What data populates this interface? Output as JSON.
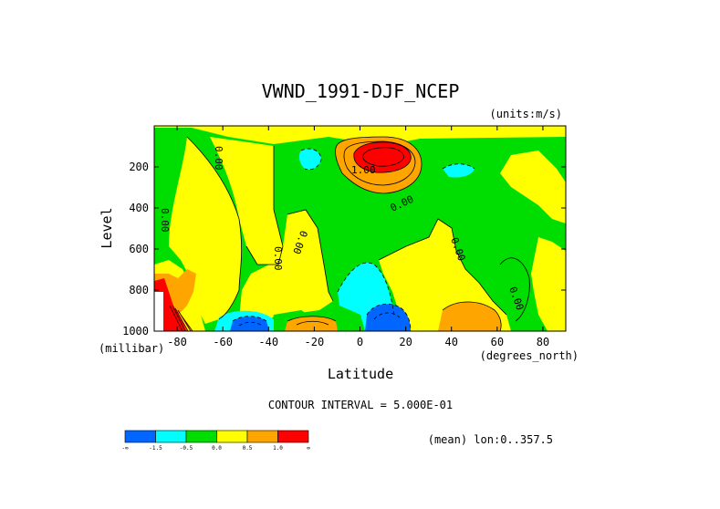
{
  "chart_data": {
    "type": "contour",
    "title": "VWND_1991-DJF_NCEP",
    "units": "(units:m/s)",
    "xlabel": "Latitude",
    "ylabel": "Level",
    "x_units": "(degrees_north)",
    "y_units": "(millibar)",
    "xlim": [
      -90,
      90
    ],
    "ylim": [
      1000,
      0
    ],
    "x_ticks": [
      -80,
      -60,
      -40,
      -20,
      0,
      20,
      40,
      60,
      80
    ],
    "y_ticks": [
      1000,
      800,
      600,
      400,
      200
    ],
    "contour_interval": "CONTOUR INTERVAL = 5.000E-01",
    "mean_note": "(mean) lon:0..357.5",
    "colorbar": {
      "ticks": [
        "-∞",
        "-1.5",
        "-0.5",
        "0.0",
        "0.5",
        "1.0",
        "∞"
      ],
      "colors": [
        "#0066ff",
        "#00ffff",
        "#00dd00",
        "#ffff00",
        "#ffa500",
        "#ff0000"
      ]
    },
    "contour_labels": [
      "0.00",
      "1.00"
    ]
  }
}
